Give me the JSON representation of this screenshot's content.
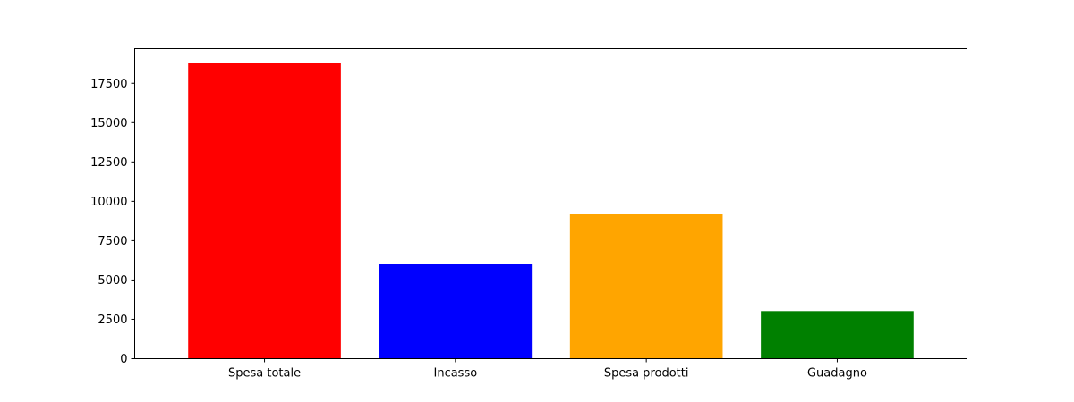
{
  "chart_data": {
    "type": "bar",
    "categories": [
      "Spesa totale",
      "Incasso",
      "Spesa prodotti",
      "Guadagno"
    ],
    "values": [
      18780,
      5990,
      9210,
      3020
    ],
    "colors": [
      "#ff0000",
      "#0000ff",
      "#ffa500",
      "#008000"
    ],
    "yticks": [
      0,
      2500,
      5000,
      7500,
      10000,
      12500,
      15000,
      17500
    ],
    "ylim": [
      0,
      19700
    ],
    "grid": false,
    "legend": false
  }
}
